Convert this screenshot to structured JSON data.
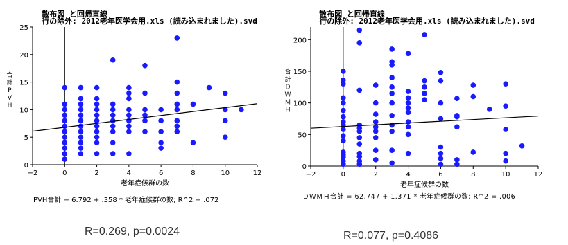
{
  "panels": [
    {
      "title": "散布図 と回帰直線",
      "subtitle": "行の除外: 2012老年医学会用.xls (読み込まれました).svd",
      "equation": "PVH合計 = 6.792 + .358 * 老年症候群の数; R^2 = .072",
      "stat": "R=0.269, p=0.0024"
    },
    {
      "title": "散布図 と回帰直線",
      "subtitle": "行の除外: 2012老年医学会用.xls (読み込まれました).svd",
      "equation": "ＤＷＭＨ合計 = 62.747 + 1.371 * 老年症候群の数; R^2 = .006",
      "stat": "R=0.077, p=0.4086"
    }
  ],
  "chart_data": [
    {
      "type": "scatter",
      "title": "散布図 と回帰直線",
      "xlabel": "老年症候群の数",
      "ylabel": "合計PVH",
      "xlim": [
        -2,
        12
      ],
      "ylim": [
        0,
        25
      ],
      "xticks": [
        -2,
        0,
        2,
        4,
        6,
        8,
        10,
        12
      ],
      "yticks": [
        0,
        5,
        10,
        15,
        20,
        25
      ],
      "grid": false,
      "marker_color": "#1a1aff",
      "regression": {
        "intercept": 6.792,
        "slope": 0.358
      },
      "points": [
        [
          0,
          1
        ],
        [
          0,
          2
        ],
        [
          0,
          3
        ],
        [
          0,
          4
        ],
        [
          0,
          5
        ],
        [
          0,
          6
        ],
        [
          0,
          7
        ],
        [
          0,
          8
        ],
        [
          0,
          9
        ],
        [
          0,
          10
        ],
        [
          0,
          11
        ],
        [
          0,
          14
        ],
        [
          1,
          2
        ],
        [
          1,
          3
        ],
        [
          1,
          4
        ],
        [
          1,
          5
        ],
        [
          1,
          6
        ],
        [
          1,
          7
        ],
        [
          1,
          8
        ],
        [
          1,
          9
        ],
        [
          1,
          10
        ],
        [
          1,
          11
        ],
        [
          1,
          12
        ],
        [
          1,
          14
        ],
        [
          2,
          2
        ],
        [
          2,
          4
        ],
        [
          2,
          5
        ],
        [
          2,
          6
        ],
        [
          2,
          7
        ],
        [
          2,
          8
        ],
        [
          2,
          9
        ],
        [
          2,
          10
        ],
        [
          2,
          11
        ],
        [
          2,
          12
        ],
        [
          2,
          14
        ],
        [
          3,
          2
        ],
        [
          3,
          4
        ],
        [
          3,
          6
        ],
        [
          3,
          7
        ],
        [
          3,
          8
        ],
        [
          3,
          9
        ],
        [
          3,
          10
        ],
        [
          3,
          11
        ],
        [
          3,
          19
        ],
        [
          4,
          2
        ],
        [
          4,
          6
        ],
        [
          4,
          7
        ],
        [
          4,
          8
        ],
        [
          4,
          9
        ],
        [
          4,
          10
        ],
        [
          4,
          12
        ],
        [
          4,
          13
        ],
        [
          4,
          14
        ],
        [
          5,
          6
        ],
        [
          5,
          8
        ],
        [
          5,
          9
        ],
        [
          5,
          10
        ],
        [
          5,
          13
        ],
        [
          5,
          18
        ],
        [
          6,
          3
        ],
        [
          6,
          4
        ],
        [
          6,
          6
        ],
        [
          6,
          8
        ],
        [
          6,
          10
        ],
        [
          7,
          6
        ],
        [
          7,
          7
        ],
        [
          7,
          8
        ],
        [
          7,
          10
        ],
        [
          7,
          11
        ],
        [
          7,
          13
        ],
        [
          7,
          15
        ],
        [
          7,
          23
        ],
        [
          8,
          4
        ],
        [
          8,
          11
        ],
        [
          9,
          14
        ],
        [
          10,
          5
        ],
        [
          10,
          8
        ],
        [
          10,
          10
        ],
        [
          10,
          13
        ],
        [
          11,
          10
        ]
      ]
    },
    {
      "type": "scatter",
      "title": "散布図 と回帰直線",
      "xlabel": "老年症候群の数",
      "ylabel": "合計ＤＷＭＨ",
      "xlim": [
        -2,
        12
      ],
      "ylim": [
        0,
        220
      ],
      "xticks": [
        -2,
        0,
        2,
        4,
        6,
        8,
        10,
        12
      ],
      "yticks": [
        0,
        50,
        100,
        150,
        200
      ],
      "grid": false,
      "marker_color": "#1a1aff",
      "regression": {
        "intercept": 62.747,
        "slope": 1.371
      },
      "points": [
        [
          0,
          3
        ],
        [
          0,
          8
        ],
        [
          0,
          14
        ],
        [
          0,
          18
        ],
        [
          0,
          22
        ],
        [
          0,
          40
        ],
        [
          0,
          48
        ],
        [
          0,
          58
        ],
        [
          0,
          65
        ],
        [
          0,
          70
        ],
        [
          0,
          78
        ],
        [
          0,
          88
        ],
        [
          0,
          100
        ],
        [
          0,
          108
        ],
        [
          0,
          130
        ],
        [
          0,
          136
        ],
        [
          0,
          150
        ],
        [
          1,
          3
        ],
        [
          1,
          8
        ],
        [
          1,
          15
        ],
        [
          1,
          20
        ],
        [
          1,
          35
        ],
        [
          1,
          45
        ],
        [
          1,
          55
        ],
        [
          1,
          60
        ],
        [
          1,
          65
        ],
        [
          1,
          120
        ],
        [
          1,
          195
        ],
        [
          1,
          215
        ],
        [
          2,
          10
        ],
        [
          2,
          25
        ],
        [
          2,
          45
        ],
        [
          2,
          55
        ],
        [
          2,
          62
        ],
        [
          2,
          70
        ],
        [
          2,
          82
        ],
        [
          2,
          100
        ],
        [
          2,
          128
        ],
        [
          3,
          5
        ],
        [
          3,
          25
        ],
        [
          3,
          55
        ],
        [
          3,
          65
        ],
        [
          3,
          80
        ],
        [
          3,
          100
        ],
        [
          3,
          115
        ],
        [
          3,
          125
        ],
        [
          3,
          140
        ],
        [
          3,
          160
        ],
        [
          3,
          165
        ],
        [
          3,
          185
        ],
        [
          4,
          20
        ],
        [
          4,
          50
        ],
        [
          4,
          62
        ],
        [
          4,
          70
        ],
        [
          4,
          85
        ],
        [
          4,
          92
        ],
        [
          4,
          100
        ],
        [
          4,
          108
        ],
        [
          4,
          118
        ],
        [
          4,
          178
        ],
        [
          5,
          105
        ],
        [
          5,
          115
        ],
        [
          5,
          125
        ],
        [
          5,
          135
        ],
        [
          5,
          208
        ],
        [
          6,
          3
        ],
        [
          6,
          12
        ],
        [
          6,
          20
        ],
        [
          6,
          30
        ],
        [
          6,
          75
        ],
        [
          6,
          100
        ],
        [
          6,
          135
        ],
        [
          6,
          148
        ],
        [
          7,
          3
        ],
        [
          7,
          10
        ],
        [
          7,
          62
        ],
        [
          7,
          78
        ],
        [
          7,
          80
        ],
        [
          7,
          107
        ],
        [
          8,
          22
        ],
        [
          8,
          110
        ],
        [
          8,
          128
        ],
        [
          9,
          90
        ],
        [
          10,
          8
        ],
        [
          10,
          20
        ],
        [
          10,
          58
        ],
        [
          10,
          95
        ],
        [
          10,
          130
        ],
        [
          11,
          32
        ]
      ]
    }
  ]
}
